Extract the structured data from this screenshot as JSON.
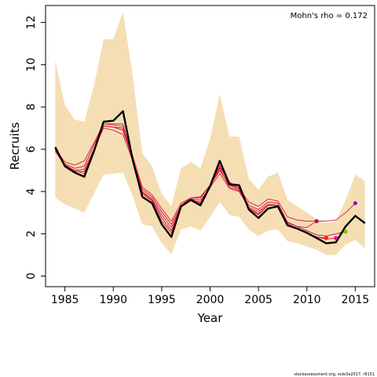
{
  "chart_data": {
    "type": "line",
    "xlabel": "Year",
    "ylabel": "Recruits",
    "xlim": [
      1983,
      2017
    ],
    "ylim": [
      -0.5,
      12.8
    ],
    "x_ticks": [
      1985,
      1990,
      1995,
      2000,
      2005,
      2010,
      2015
    ],
    "y_ticks": [
      0,
      2,
      4,
      6,
      8,
      10,
      12
    ],
    "annotation": "Mohn's rho = 0.172",
    "credit": "stockassessment.org, sole3a2017, r8151",
    "colors": {
      "band": "#f5deb3",
      "main": "#000000",
      "peels": "#e0144c",
      "peel_thin": "#c8102e"
    },
    "band": {
      "x": [
        1984,
        1985,
        1986,
        1987,
        1988,
        1989,
        1990,
        1991,
        1992,
        1993,
        1994,
        1995,
        1996,
        1997,
        1998,
        1999,
        2000,
        2001,
        2002,
        2003,
        2004,
        2005,
        2006,
        2007,
        2008,
        2009,
        2010,
        2011,
        2012,
        2013,
        2014,
        2015,
        2016
      ],
      "upper": [
        10.2,
        8.1,
        7.4,
        7.3,
        9.0,
        11.2,
        11.2,
        12.5,
        9.5,
        5.8,
        5.2,
        3.9,
        3.3,
        5.1,
        5.4,
        5.1,
        6.5,
        8.6,
        6.6,
        6.6,
        4.6,
        4.1,
        4.7,
        4.9,
        3.6,
        3.3,
        3.0,
        2.7,
        2.5,
        2.6,
        3.6,
        4.8,
        4.5
      ],
      "lower": [
        3.7,
        3.4,
        3.2,
        3.0,
        3.9,
        4.8,
        4.85,
        4.9,
        3.8,
        2.45,
        2.35,
        1.55,
        1.05,
        2.2,
        2.35,
        2.15,
        2.8,
        3.5,
        2.9,
        2.8,
        2.2,
        1.9,
        2.15,
        2.2,
        1.65,
        1.55,
        1.4,
        1.25,
        1.0,
        1.0,
        1.5,
        1.7,
        1.3
      ]
    },
    "series": [
      {
        "role": "final",
        "x": [
          1984,
          1985,
          1986,
          1987,
          1988,
          1989,
          1990,
          1991,
          1992,
          1993,
          1994,
          1995,
          1996,
          1997,
          1998,
          1999,
          2000,
          2001,
          2002,
          2003,
          2004,
          2005,
          2006,
          2007,
          2008,
          2009,
          2010,
          2011,
          2012,
          2013,
          2014,
          2015,
          2016
        ],
        "values": [
          6.1,
          5.2,
          4.9,
          4.7,
          5.9,
          7.3,
          7.35,
          7.8,
          5.5,
          3.75,
          3.45,
          2.45,
          1.85,
          3.3,
          3.6,
          3.35,
          4.25,
          5.45,
          4.35,
          4.3,
          3.15,
          2.75,
          3.2,
          3.3,
          2.4,
          2.25,
          2.05,
          1.8,
          1.55,
          1.6,
          2.35,
          2.85,
          2.5
        ]
      },
      {
        "role": "peel",
        "x": [
          1984,
          1985,
          1986,
          1987,
          1988,
          1989,
          1990,
          1991,
          1992,
          1993,
          1994,
          1995,
          1996,
          1997,
          1998,
          1999,
          2000,
          2001,
          2002,
          2003,
          2004,
          2005,
          2006,
          2007,
          2008,
          2009,
          2010,
          2011,
          2012,
          2013,
          2014,
          2015
        ],
        "values": [
          6.0,
          5.4,
          5.25,
          5.45,
          6.3,
          7.2,
          7.15,
          7.1,
          5.7,
          4.2,
          3.85,
          3.2,
          2.6,
          3.45,
          3.7,
          3.75,
          4.3,
          5.15,
          4.45,
          4.15,
          3.5,
          3.3,
          3.65,
          3.55,
          2.8,
          2.65,
          2.6,
          2.6,
          2.6,
          2.65,
          3.0,
          3.45
        ]
      },
      {
        "role": "peel",
        "x": [
          1984,
          1985,
          1986,
          1987,
          1988,
          1989,
          1990,
          1991,
          1992,
          1993,
          1994,
          1995,
          1996,
          1997,
          1998,
          1999,
          2000,
          2001,
          2002,
          2003,
          2004,
          2005,
          2006,
          2007,
          2008,
          2009,
          2010,
          2011,
          2012,
          2013,
          2014
        ],
        "values": [
          5.95,
          5.3,
          5.1,
          5.2,
          6.2,
          7.1,
          7.05,
          6.9,
          5.55,
          4.1,
          3.75,
          3.05,
          2.45,
          3.35,
          3.7,
          3.7,
          4.3,
          5.0,
          4.3,
          4.1,
          3.35,
          3.15,
          3.5,
          3.45,
          2.55,
          2.35,
          2.15,
          1.95,
          1.9,
          2.0,
          2.1
        ]
      },
      {
        "role": "peel",
        "x": [
          1984,
          1985,
          1986,
          1987,
          1988,
          1989,
          1990,
          1991,
          1992,
          1993,
          1994,
          1995,
          1996,
          1997,
          1998,
          1999,
          2000,
          2001,
          2002,
          2003,
          2004,
          2005,
          2006,
          2007,
          2008,
          2009,
          2010,
          2011,
          2012,
          2013
        ],
        "values": [
          5.9,
          5.25,
          5.0,
          5.05,
          6.0,
          7.0,
          6.9,
          6.7,
          5.45,
          4.0,
          3.65,
          2.9,
          2.3,
          3.3,
          3.65,
          3.6,
          4.2,
          4.85,
          4.15,
          4.0,
          3.25,
          3.05,
          3.4,
          3.35,
          2.45,
          2.25,
          2.05,
          1.85,
          1.75,
          1.8
        ]
      },
      {
        "role": "peel",
        "x": [
          1984,
          1985,
          1986,
          1987,
          1988,
          1989,
          1990,
          1991,
          1992,
          1993,
          1994,
          1995,
          1996,
          1997,
          1998,
          1999,
          2000,
          2001,
          2002,
          2003,
          2004,
          2005,
          2006,
          2007,
          2008,
          2009,
          2010,
          2011,
          2012
        ],
        "values": [
          6.0,
          5.2,
          4.95,
          4.95,
          5.9,
          7.1,
          7.05,
          7.0,
          5.5,
          3.95,
          3.6,
          2.75,
          2.15,
          3.3,
          3.6,
          3.5,
          4.25,
          5.1,
          4.2,
          4.05,
          3.2,
          2.95,
          3.35,
          3.35,
          2.45,
          2.25,
          2.05,
          1.85,
          1.8
        ]
      },
      {
        "role": "peel",
        "x": [
          1984,
          1985,
          1986,
          1987,
          1988,
          1989,
          1990,
          1991,
          1992,
          1993,
          1994,
          1995,
          1996,
          1997,
          1998,
          1999,
          2000,
          2001,
          2002,
          2003,
          2004,
          2005,
          2006,
          2007,
          2008,
          2009,
          2010,
          2011
        ],
        "values": [
          6.05,
          5.25,
          5.0,
          4.85,
          5.95,
          7.2,
          7.2,
          7.2,
          5.5,
          3.9,
          3.55,
          2.6,
          2.05,
          3.3,
          3.65,
          3.45,
          4.25,
          5.25,
          4.3,
          4.2,
          3.2,
          2.9,
          3.35,
          3.35,
          2.5,
          2.35,
          2.3,
          2.6
        ]
      }
    ],
    "endpoints": [
      {
        "x": 2011,
        "y": 2.6,
        "color": "#b5004f"
      },
      {
        "x": 2012,
        "y": 1.8,
        "color": "#ff1a1a"
      },
      {
        "x": 2013,
        "y": 1.8,
        "color": "#e8008a"
      },
      {
        "x": 2014,
        "y": 2.1,
        "color": "#7ac70c"
      },
      {
        "x": 2015,
        "y": 3.45,
        "color": "#7a1fc2"
      }
    ]
  }
}
